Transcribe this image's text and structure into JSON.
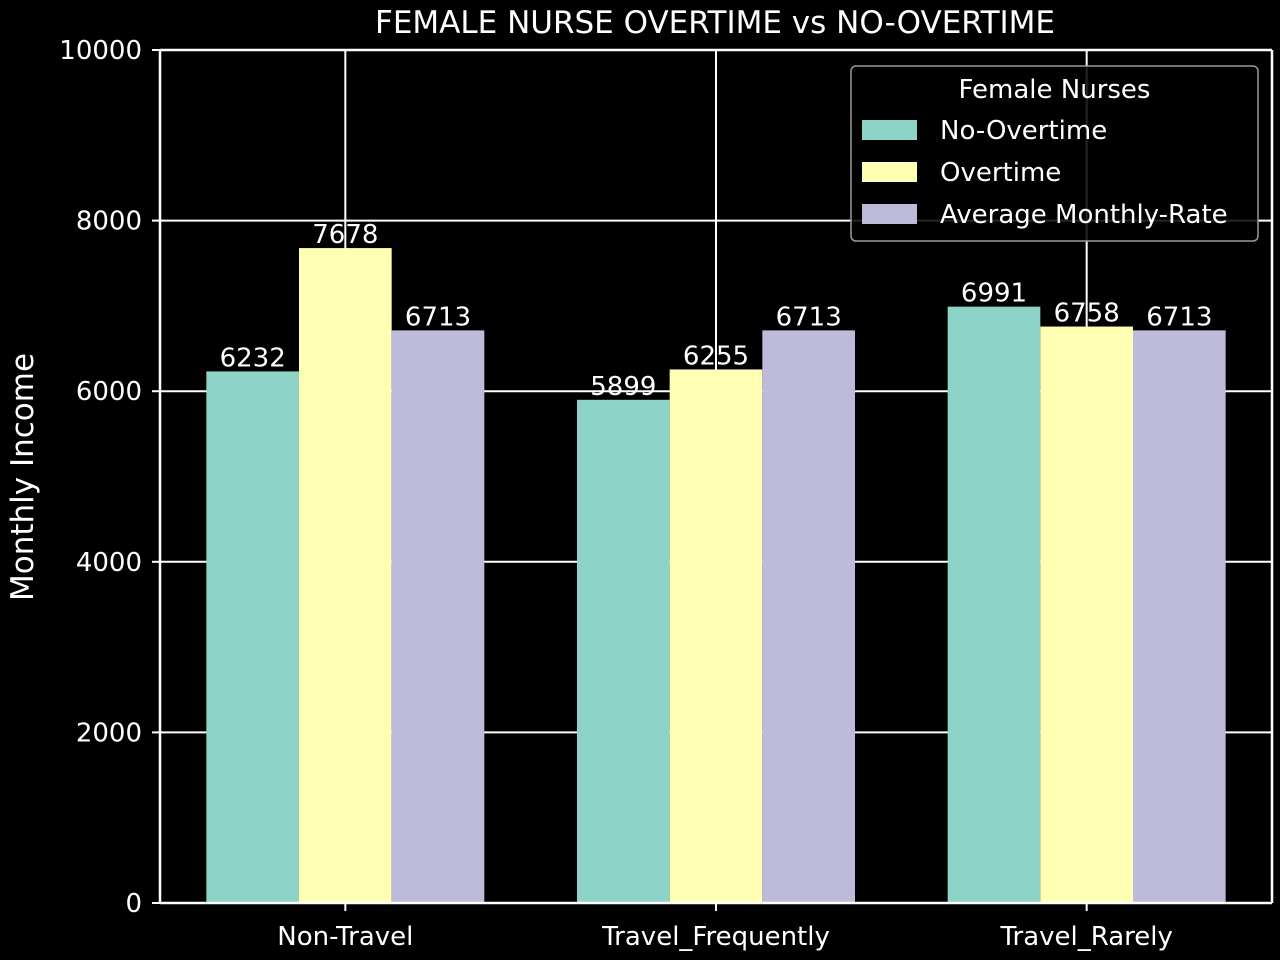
{
  "chart_data": {
    "type": "bar",
    "title": "FEMALE NURSE OVERTIME vs NO-OVERTIME",
    "xlabel": "",
    "ylabel": "Monthly Income",
    "ylim": [
      0,
      10000
    ],
    "yticks": [
      0,
      2000,
      4000,
      6000,
      8000,
      10000
    ],
    "categories": [
      "Non-Travel",
      "Travel_Frequently",
      "Travel_Rarely"
    ],
    "series": [
      {
        "name": "No-Overtime",
        "color": "#8dd3c7",
        "values": [
          6232,
          5899,
          6991
        ]
      },
      {
        "name": "Overtime",
        "color": "#ffffb3",
        "values": [
          7678,
          6255,
          6758
        ]
      },
      {
        "name": "Average Monthly-Rate",
        "color": "#bebada",
        "values": [
          6713,
          6713,
          6713
        ]
      }
    ],
    "legend": {
      "title": "Female Nurses",
      "position": "top-right"
    },
    "grid": true
  }
}
